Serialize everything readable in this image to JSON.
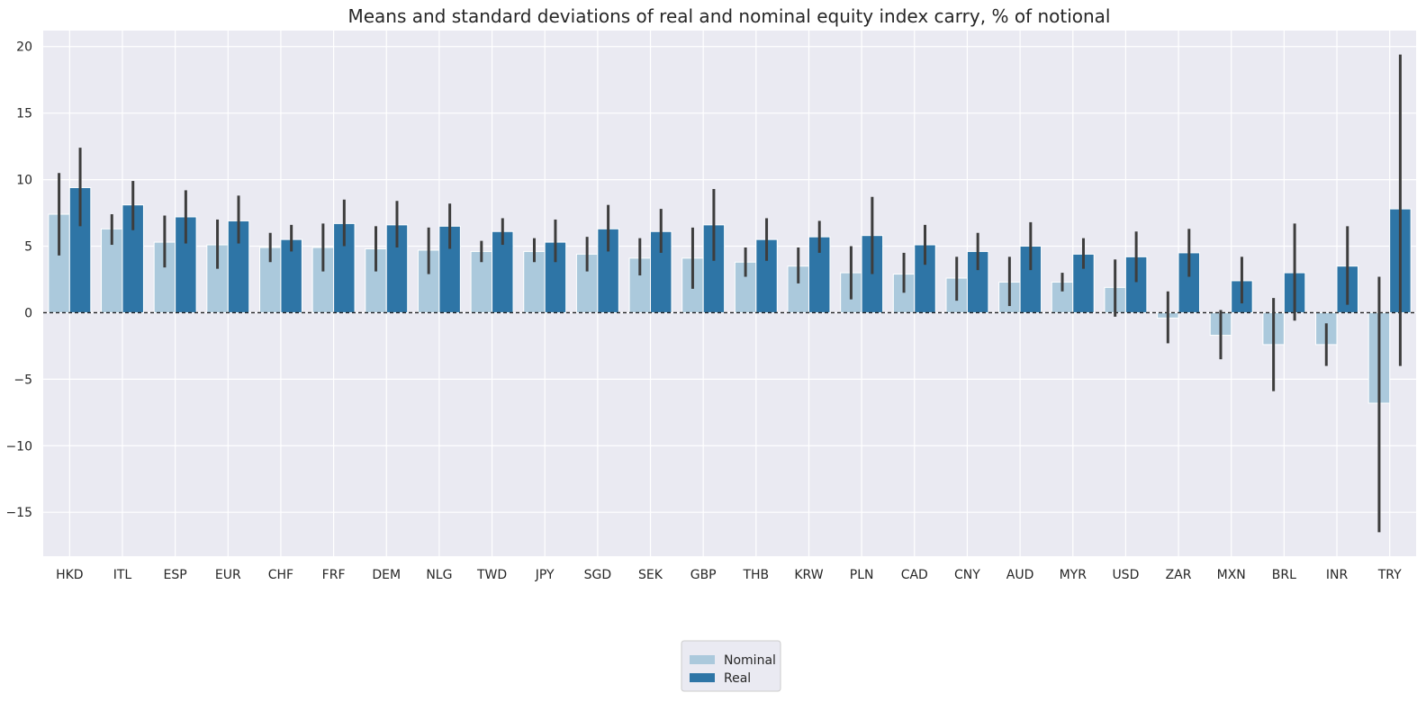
{
  "chart_data": {
    "type": "bar",
    "title": "Means and standard deviations of real and nominal equity index carry, % of notional",
    "xlabel": "",
    "ylabel": "",
    "ylim": [
      -18.3,
      21.2
    ],
    "yticks": [
      -15,
      -10,
      -5,
      0,
      5,
      10,
      15,
      20
    ],
    "grid": true,
    "legend_position": "bottom-center",
    "zero_line": "dashed",
    "categories": [
      "HKD",
      "ITL",
      "ESP",
      "EUR",
      "CHF",
      "FRF",
      "DEM",
      "NLG",
      "TWD",
      "JPY",
      "SGD",
      "SEK",
      "GBP",
      "THB",
      "KRW",
      "PLN",
      "CAD",
      "CNY",
      "AUD",
      "MYR",
      "USD",
      "ZAR",
      "MXN",
      "BRL",
      "INR",
      "TRY"
    ],
    "series": [
      {
        "name": "Nominal",
        "color": "#abc9dc",
        "values": [
          7.4,
          6.3,
          5.3,
          5.1,
          4.9,
          4.9,
          4.8,
          4.7,
          4.6,
          4.6,
          4.4,
          4.1,
          4.1,
          3.8,
          3.5,
          3.0,
          2.9,
          2.6,
          2.3,
          2.3,
          1.9,
          -0.4,
          -1.7,
          -2.4,
          -2.4,
          -6.8
        ],
        "error_low": [
          4.3,
          5.1,
          3.4,
          3.3,
          3.8,
          3.1,
          3.1,
          2.9,
          3.8,
          3.8,
          3.1,
          2.8,
          1.8,
          2.7,
          2.2,
          1.0,
          1.5,
          0.9,
          0.5,
          1.6,
          -0.3,
          -2.3,
          -3.5,
          -5.9,
          -4.0,
          -16.5
        ],
        "error_high": [
          10.5,
          7.4,
          7.3,
          7.0,
          6.0,
          6.7,
          6.5,
          6.4,
          5.4,
          5.6,
          5.7,
          5.6,
          6.4,
          4.9,
          4.9,
          5.0,
          4.5,
          4.2,
          4.2,
          3.0,
          4.0,
          1.6,
          0.2,
          1.1,
          -0.8,
          2.7
        ]
      },
      {
        "name": "Real",
        "color": "#2e75a6",
        "values": [
          9.4,
          8.1,
          7.2,
          6.9,
          5.5,
          6.7,
          6.6,
          6.5,
          6.1,
          5.3,
          6.3,
          6.1,
          6.6,
          5.5,
          5.7,
          5.8,
          5.1,
          4.6,
          5.0,
          4.4,
          4.2,
          4.5,
          2.4,
          3.0,
          3.5,
          7.8
        ],
        "error_low": [
          6.5,
          6.2,
          5.2,
          5.2,
          4.6,
          5.0,
          4.9,
          4.8,
          5.1,
          3.8,
          4.6,
          4.5,
          3.9,
          3.9,
          4.5,
          2.9,
          3.6,
          3.2,
          3.2,
          3.3,
          2.3,
          2.7,
          0.7,
          -0.6,
          0.6,
          -4.0
        ],
        "error_high": [
          12.4,
          9.9,
          9.2,
          8.8,
          6.6,
          8.5,
          8.4,
          8.2,
          7.1,
          7.0,
          8.1,
          7.8,
          9.3,
          7.1,
          6.9,
          8.7,
          6.6,
          6.0,
          6.8,
          5.6,
          6.1,
          6.3,
          4.2,
          6.7,
          6.5,
          19.4
        ]
      }
    ]
  }
}
